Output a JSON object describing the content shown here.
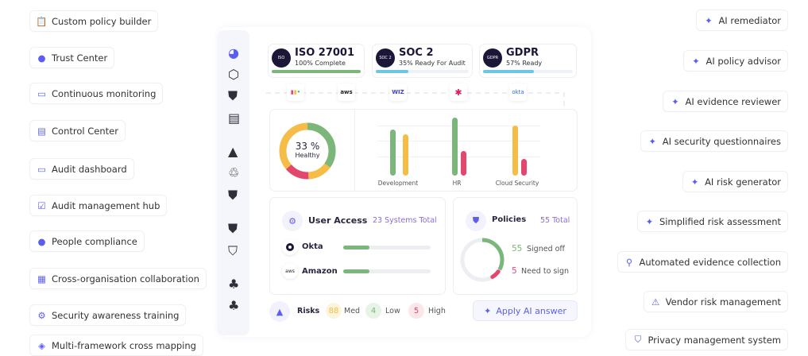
{
  "left_features": [
    {
      "label": "Custom policy builder",
      "icon": "clipboard-icon"
    },
    {
      "label": "Trust Center",
      "icon": "person-icon"
    },
    {
      "label": "Continuous monitoring",
      "icon": "monitor-icon"
    },
    {
      "label": "Control Center",
      "icon": "control-panel-icon"
    },
    {
      "label": "Audit dashboard",
      "icon": "monitor-icon"
    },
    {
      "label": "Audit management hub",
      "icon": "clipboard-check-icon"
    },
    {
      "label": "People compliance",
      "icon": "person-icon"
    },
    {
      "label": "Cross-organisation collaboration",
      "icon": "layout-icon"
    },
    {
      "label": "Security awareness training",
      "icon": "gear-icon"
    },
    {
      "label": "Multi-framework cross mapping",
      "icon": "layers-icon"
    }
  ],
  "right_features": [
    {
      "label": "AI remediator",
      "icon": "sparkle-icon"
    },
    {
      "label": "AI policy advisor",
      "icon": "sparkle-icon"
    },
    {
      "label": "AI evidence reviewer",
      "icon": "sparkle-icon"
    },
    {
      "label": "AI security questionnaires",
      "icon": "sparkle-icon"
    },
    {
      "label": "AI risk generator",
      "icon": "sparkle-icon"
    },
    {
      "label": "Simplified risk assessment",
      "icon": "sparkle-icon"
    },
    {
      "label": "Automated evidence collection",
      "icon": "search-icon"
    },
    {
      "label": "Vendor risk management",
      "icon": "warning-icon"
    },
    {
      "label": "Privacy management system",
      "icon": "shield-check-icon"
    }
  ],
  "frameworks": [
    {
      "name": "ISO 27001",
      "status": "100% Complete",
      "logo": "ISO",
      "progress": 100,
      "color": "#7bb77b"
    },
    {
      "name": "SOC 2",
      "status": "35% Ready For Audit",
      "logo": "SOC 2",
      "progress": 35,
      "color": "#6cc6e6"
    },
    {
      "name": "GDPR",
      "status": "57% Ready",
      "logo": "GDPR",
      "progress": 57,
      "color": "#6cc6e6"
    }
  ],
  "integrations": [
    "monday",
    "aws",
    "wiz",
    "slack",
    "okta"
  ],
  "health": {
    "value": "33 %",
    "label": "Healthy"
  },
  "chart_data": {
    "type": "bar",
    "categories": [
      "Development",
      "HR",
      "Cloud Security"
    ],
    "series": [
      {
        "name": "green",
        "color": "#7bb77b",
        "values": [
          58,
          73,
          null
        ]
      },
      {
        "name": "yellow",
        "color": "#f5bd47",
        "values": [
          52,
          null,
          63
        ]
      },
      {
        "name": "red",
        "color": "#e2476e",
        "values": [
          null,
          31,
          21
        ]
      }
    ]
  },
  "user_access": {
    "title": "User Access",
    "total": "23 Systems Total",
    "rows": [
      {
        "name": "Okta",
        "progress": 30
      },
      {
        "name": "Amazon",
        "progress": 30
      }
    ]
  },
  "policies": {
    "title": "Policies",
    "total": "55 Total",
    "signed": "55",
    "signed_label": "Signed off",
    "need": "5",
    "need_label": "Need to sign"
  },
  "risks": {
    "title": "Risks",
    "med": "88",
    "med_label": "Med",
    "low": "4",
    "low_label": "Low",
    "high": "5",
    "high_label": "High"
  },
  "apply_button": "Apply AI answer"
}
